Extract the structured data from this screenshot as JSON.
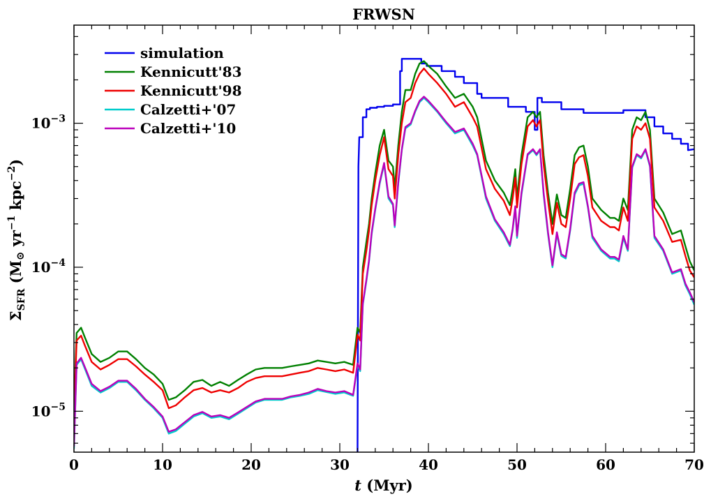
{
  "chart_data": {
    "type": "line",
    "title": "FRWSN",
    "xlabel_italic": "t",
    "xlabel_rest": " (Myr)",
    "ylabel_parts": {
      "sigma": "Σ",
      "sub": "SFR",
      "unit_open": " (M",
      "sun": "⊙",
      "yr": " yr",
      "yr_exp": "−1",
      "kpc": " kpc",
      "kpc_exp": "−2",
      "close": ")"
    },
    "xlim": [
      0,
      70
    ],
    "ylim": [
      5.2e-06,
      0.0048
    ],
    "yscale": "log",
    "xticks": [
      0,
      10,
      20,
      30,
      40,
      50,
      60,
      70
    ],
    "yticks": [
      {
        "value": 1e-05,
        "base": "10",
        "exp": "−5"
      },
      {
        "value": 0.0001,
        "base": "10",
        "exp": "−4"
      },
      {
        "value": 0.001,
        "base": "10",
        "exp": "−3"
      }
    ],
    "legend_position": "upper-left",
    "series": [
      {
        "name": "simulation",
        "color": "#0000ee",
        "x": [
          32,
          32.1,
          32.2,
          32.6,
          32.6,
          33.0,
          33.0,
          33.4,
          33.4,
          34.2,
          34.2,
          35.0,
          35.0,
          36.0,
          36.0,
          36.8,
          36.8,
          37.0,
          37.0,
          39.2,
          39.2,
          39.8,
          39.8,
          41.5,
          41.5,
          43.0,
          43.0,
          44.0,
          44.0,
          45.5,
          45.5,
          46.0,
          46.0,
          49.0,
          49.0,
          51.0,
          51.0,
          52.0,
          52.0,
          52.3,
          52.3,
          52.8,
          52.8,
          55.0,
          55.0,
          57.5,
          57.5,
          62.0,
          62.0,
          64.5,
          64.5,
          65.5,
          65.5,
          66.5,
          66.5,
          67.5,
          67.5,
          68.5,
          68.5,
          69.3,
          69.3,
          70.0
        ],
        "y": [
          5e-06,
          0.0005,
          0.0008,
          0.0008,
          0.0011,
          0.0011,
          0.00125,
          0.00125,
          0.00128,
          0.00128,
          0.0013,
          0.0013,
          0.00132,
          0.00132,
          0.00135,
          0.00135,
          0.0023,
          0.0023,
          0.0028,
          0.0028,
          0.0026,
          0.0026,
          0.0025,
          0.0025,
          0.0023,
          0.0023,
          0.0021,
          0.0021,
          0.0019,
          0.0019,
          0.0016,
          0.0016,
          0.0015,
          0.0015,
          0.0013,
          0.0013,
          0.0012,
          0.0012,
          0.0009,
          0.0009,
          0.0015,
          0.0015,
          0.0014,
          0.0014,
          0.00125,
          0.00125,
          0.00118,
          0.00118,
          0.00123,
          0.00123,
          0.0011,
          0.0011,
          0.00095,
          0.00095,
          0.00085,
          0.00085,
          0.00078,
          0.00078,
          0.00072,
          0.00072,
          0.00065,
          0.00066
        ]
      },
      {
        "name": "Kennicutt'83",
        "color": "#008000",
        "x": [
          0,
          0.3,
          0.8,
          1.2,
          2.0,
          3.0,
          4.0,
          5.0,
          6.0,
          7.0,
          8.0,
          9.0,
          10.0,
          10.7,
          11.5,
          12.5,
          13.5,
          14.5,
          15.5,
          16.5,
          17.5,
          18.5,
          19.5,
          20.5,
          21.5,
          22.5,
          23.5,
          24.5,
          25.5,
          26.5,
          27.5,
          28.5,
          29.5,
          30.5,
          31.5,
          32.0,
          32.3,
          32.6,
          33.0,
          33.3,
          33.6,
          34.0,
          34.5,
          35.0,
          35.5,
          36.0,
          36.2,
          36.6,
          37.0,
          37.4,
          38.0,
          38.5,
          39.0,
          39.5,
          40.0,
          41.0,
          42.0,
          43.0,
          44.0,
          45.0,
          45.5,
          46.5,
          47.5,
          48.5,
          49.2,
          49.5,
          49.8,
          50.0,
          50.5,
          51.2,
          51.8,
          52.2,
          52.6,
          53.0,
          53.5,
          54.0,
          54.5,
          55.0,
          55.5,
          56.0,
          56.5,
          57.0,
          57.5,
          58.0,
          58.5,
          59.5,
          60.5,
          61.0,
          61.5,
          62.0,
          62.5,
          63.0,
          63.5,
          64.0,
          64.5,
          65.0,
          65.5,
          66.5,
          67.5,
          68.5,
          69.0,
          69.5,
          70.0
        ],
        "y": [
          1e-05,
          3.5e-05,
          3.8e-05,
          3.3e-05,
          2.5e-05,
          2.2e-05,
          2.35e-05,
          2.6e-05,
          2.6e-05,
          2.3e-05,
          2e-05,
          1.8e-05,
          1.55e-05,
          1.2e-05,
          1.25e-05,
          1.4e-05,
          1.6e-05,
          1.65e-05,
          1.5e-05,
          1.6e-05,
          1.5e-05,
          1.65e-05,
          1.8e-05,
          1.95e-05,
          2e-05,
          2e-05,
          2e-05,
          2.05e-05,
          2.1e-05,
          2.15e-05,
          2.25e-05,
          2.2e-05,
          2.15e-05,
          2.2e-05,
          2.1e-05,
          3.8e-05,
          3.5e-05,
          0.0001,
          0.00015,
          0.0002,
          0.0003,
          0.00045,
          0.0007,
          0.0009,
          0.00055,
          0.0005,
          0.00035,
          0.0007,
          0.0012,
          0.0017,
          0.0017,
          0.0022,
          0.0026,
          0.0027,
          0.0025,
          0.0022,
          0.0018,
          0.0015,
          0.0016,
          0.0013,
          0.0011,
          0.00055,
          0.0004,
          0.00033,
          0.00027,
          0.00035,
          0.00048,
          0.0003,
          0.0006,
          0.0011,
          0.0012,
          0.0011,
          0.0012,
          0.0006,
          0.00033,
          0.0002,
          0.00032,
          0.00023,
          0.00022,
          0.00035,
          0.0006,
          0.00068,
          0.0007,
          0.0005,
          0.0003,
          0.00025,
          0.00022,
          0.00022,
          0.00021,
          0.0003,
          0.00025,
          0.0009,
          0.0011,
          0.00105,
          0.0012,
          0.0009,
          0.0003,
          0.00024,
          0.00017,
          0.00018,
          0.00014,
          0.00011,
          9.5e-05
        ]
      },
      {
        "name": "Kennicutt'98",
        "color": "#ee0000",
        "x": [
          0,
          0.3,
          0.8,
          1.2,
          2.0,
          3.0,
          4.0,
          5.0,
          6.0,
          7.0,
          8.0,
          9.0,
          10.0,
          10.7,
          11.5,
          12.5,
          13.5,
          14.5,
          15.5,
          16.5,
          17.5,
          18.5,
          19.5,
          20.5,
          21.5,
          22.5,
          23.5,
          24.5,
          25.5,
          26.5,
          27.5,
          28.5,
          29.5,
          30.5,
          31.5,
          32.0,
          32.3,
          32.6,
          33.0,
          33.3,
          33.6,
          34.0,
          34.5,
          35.0,
          35.5,
          36.0,
          36.2,
          36.6,
          37.0,
          37.4,
          38.0,
          38.5,
          39.0,
          39.5,
          40.0,
          41.0,
          42.0,
          43.0,
          44.0,
          45.0,
          45.5,
          46.5,
          47.5,
          48.5,
          49.2,
          49.5,
          49.8,
          50.0,
          50.5,
          51.2,
          51.8,
          52.2,
          52.6,
          53.0,
          53.5,
          54.0,
          54.5,
          55.0,
          55.5,
          56.0,
          56.5,
          57.0,
          57.5,
          58.0,
          58.5,
          59.5,
          60.5,
          61.0,
          61.5,
          62.0,
          62.5,
          63.0,
          63.5,
          64.0,
          64.5,
          65.0,
          65.5,
          66.5,
          67.5,
          68.5,
          69.0,
          69.5,
          70.0
        ],
        "y": [
          9e-06,
          3.1e-05,
          3.35e-05,
          2.9e-05,
          2.2e-05,
          1.95e-05,
          2.1e-05,
          2.3e-05,
          2.3e-05,
          2.05e-05,
          1.8e-05,
          1.6e-05,
          1.4e-05,
          1.05e-05,
          1.1e-05,
          1.25e-05,
          1.4e-05,
          1.45e-05,
          1.35e-05,
          1.4e-05,
          1.35e-05,
          1.45e-05,
          1.6e-05,
          1.7e-05,
          1.75e-05,
          1.75e-05,
          1.75e-05,
          1.8e-05,
          1.85e-05,
          1.9e-05,
          2e-05,
          1.95e-05,
          1.9e-05,
          1.95e-05,
          1.85e-05,
          3.4e-05,
          3.1e-05,
          9e-05,
          0.00013,
          0.00018,
          0.00027,
          0.0004,
          0.0006,
          0.0008,
          0.00048,
          0.00043,
          0.0003,
          0.0006,
          0.001,
          0.0014,
          0.0015,
          0.0019,
          0.0022,
          0.0024,
          0.0022,
          0.0019,
          0.0016,
          0.0013,
          0.0014,
          0.0011,
          0.00095,
          0.00048,
          0.00035,
          0.00029,
          0.00023,
          0.0003,
          0.00042,
          0.00026,
          0.00052,
          0.00095,
          0.00105,
          0.00095,
          0.00105,
          0.00052,
          0.00029,
          0.00017,
          0.00028,
          0.0002,
          0.00019,
          0.0003,
          0.00052,
          0.00058,
          0.0006,
          0.00043,
          0.00026,
          0.00021,
          0.00019,
          0.00019,
          0.00018,
          0.00026,
          0.00021,
          0.00078,
          0.00095,
          0.0009,
          0.001,
          0.00078,
          0.00026,
          0.00021,
          0.00015,
          0.000155,
          0.00012,
          9.5e-05,
          8.5e-05
        ]
      },
      {
        "name": "Calzetti+'07",
        "color": "#00cccc",
        "x": [
          0,
          0.3,
          0.8,
          1.2,
          2.0,
          3.0,
          4.0,
          5.0,
          6.0,
          7.0,
          8.0,
          9.0,
          10.0,
          10.7,
          11.5,
          12.5,
          13.5,
          14.5,
          15.5,
          16.5,
          17.5,
          18.5,
          19.5,
          20.5,
          21.5,
          22.5,
          23.5,
          24.5,
          25.5,
          26.5,
          27.5,
          28.5,
          29.5,
          30.5,
          31.5,
          32.0,
          32.3,
          32.6,
          33.0,
          33.3,
          33.6,
          34.0,
          34.5,
          35.0,
          35.5,
          36.0,
          36.2,
          36.6,
          37.0,
          37.4,
          38.0,
          38.5,
          39.0,
          39.5,
          40.0,
          41.0,
          42.0,
          43.0,
          44.0,
          45.0,
          45.5,
          46.5,
          47.5,
          48.5,
          49.2,
          49.5,
          49.8,
          50.0,
          50.5,
          51.2,
          51.8,
          52.2,
          52.6,
          53.0,
          53.5,
          54.0,
          54.5,
          55.0,
          55.5,
          56.0,
          56.5,
          57.0,
          57.5,
          58.0,
          58.5,
          59.5,
          60.5,
          61.0,
          61.5,
          62.0,
          62.5,
          63.0,
          63.5,
          64.0,
          64.5,
          65.0,
          65.5,
          66.5,
          67.5,
          68.5,
          69.0,
          69.5,
          70.0
        ],
        "y": [
          5.5e-06,
          2.1e-05,
          2.3e-05,
          2e-05,
          1.5e-05,
          1.35e-05,
          1.45e-05,
          1.6e-05,
          1.6e-05,
          1.4e-05,
          1.2e-05,
          1.05e-05,
          9e-06,
          7e-06,
          7.3e-06,
          8.2e-06,
          9.2e-06,
          9.7e-06,
          9e-06,
          9.2e-06,
          8.8e-06,
          9.6e-06,
          1.05e-05,
          1.15e-05,
          1.2e-05,
          1.2e-05,
          1.2e-05,
          1.25e-05,
          1.28e-05,
          1.32e-05,
          1.4e-05,
          1.36e-05,
          1.32e-05,
          1.35e-05,
          1.28e-05,
          2.1e-05,
          1.9e-05,
          5.5e-05,
          8e-05,
          0.00011,
          0.00017,
          0.00025,
          0.00038,
          0.00052,
          0.0003,
          0.00027,
          0.00019,
          0.00038,
          0.00065,
          0.00092,
          0.00098,
          0.0012,
          0.0014,
          0.0015,
          0.0014,
          0.0012,
          0.001,
          0.00085,
          0.0009,
          0.0007,
          0.0006,
          0.0003,
          0.00021,
          0.00017,
          0.00014,
          0.00018,
          0.00026,
          0.00016,
          0.00032,
          0.0006,
          0.00065,
          0.0006,
          0.00065,
          0.00032,
          0.00017,
          0.0001,
          0.00017,
          0.00012,
          0.000115,
          0.00018,
          0.00032,
          0.00037,
          0.00038,
          0.00026,
          0.00016,
          0.00013,
          0.000115,
          0.000115,
          0.00011,
          0.00016,
          0.00013,
          0.00049,
          0.0006,
          0.00057,
          0.00065,
          0.0005,
          0.00016,
          0.00013,
          9e-05,
          9.5e-05,
          7.5e-05,
          6.5e-05,
          5.5e-05
        ]
      },
      {
        "name": "Calzetti+'10",
        "color": "#bb00bb",
        "x": [
          0,
          0.3,
          0.8,
          1.2,
          2.0,
          3.0,
          4.0,
          5.0,
          6.0,
          7.0,
          8.0,
          9.0,
          10.0,
          10.7,
          11.5,
          12.5,
          13.5,
          14.5,
          15.5,
          16.5,
          17.5,
          18.5,
          19.5,
          20.5,
          21.5,
          22.5,
          23.5,
          24.5,
          25.5,
          26.5,
          27.5,
          28.5,
          29.5,
          30.5,
          31.5,
          32.0,
          32.3,
          32.6,
          33.0,
          33.3,
          33.6,
          34.0,
          34.5,
          35.0,
          35.5,
          36.0,
          36.2,
          36.6,
          37.0,
          37.4,
          38.0,
          38.5,
          39.0,
          39.5,
          40.0,
          41.0,
          42.0,
          43.0,
          44.0,
          45.0,
          45.5,
          46.5,
          47.5,
          48.5,
          49.2,
          49.5,
          49.8,
          50.0,
          50.5,
          51.2,
          51.8,
          52.2,
          52.6,
          53.0,
          53.5,
          54.0,
          54.5,
          55.0,
          55.5,
          56.0,
          56.5,
          57.0,
          57.5,
          58.0,
          58.5,
          59.5,
          60.5,
          61.0,
          61.5,
          62.0,
          62.5,
          63.0,
          63.5,
          64.0,
          64.5,
          65.0,
          65.5,
          66.5,
          67.5,
          68.5,
          69.0,
          69.5,
          70.0
        ],
        "y": [
          5.7e-06,
          2.15e-05,
          2.35e-05,
          2.05e-05,
          1.55e-05,
          1.38e-05,
          1.48e-05,
          1.63e-05,
          1.63e-05,
          1.43e-05,
          1.22e-05,
          1.07e-05,
          9.2e-06,
          7.2e-06,
          7.5e-06,
          8.4e-06,
          9.4e-06,
          9.9e-06,
          9.2e-06,
          9.4e-06,
          9e-06,
          9.8e-06,
          1.07e-05,
          1.17e-05,
          1.22e-05,
          1.22e-05,
          1.22e-05,
          1.27e-05,
          1.3e-05,
          1.35e-05,
          1.43e-05,
          1.38e-05,
          1.35e-05,
          1.38e-05,
          1.3e-05,
          2.15e-05,
          1.95e-05,
          5.6e-05,
          8.2e-05,
          0.000112,
          0.000175,
          0.000255,
          0.00039,
          0.00053,
          0.00031,
          0.000275,
          0.000195,
          0.00039,
          0.00066,
          0.00094,
          0.001,
          0.00122,
          0.00143,
          0.00153,
          0.00143,
          0.00122,
          0.00102,
          0.00087,
          0.00092,
          0.00072,
          0.00061,
          0.00031,
          0.000215,
          0.000175,
          0.000143,
          0.000185,
          0.000265,
          0.000165,
          0.00033,
          0.00061,
          0.00066,
          0.00061,
          0.00066,
          0.00033,
          0.000175,
          0.000103,
          0.000175,
          0.000123,
          0.000118,
          0.000185,
          0.00033,
          0.00038,
          0.00039,
          0.000265,
          0.000165,
          0.000133,
          0.000118,
          0.000118,
          0.000113,
          0.000165,
          0.000133,
          0.0005,
          0.00061,
          0.00058,
          0.00066,
          0.00051,
          0.000165,
          0.000133,
          9.2e-05,
          9.7e-05,
          7.7e-05,
          6.7e-05,
          5.7e-05
        ]
      }
    ]
  }
}
